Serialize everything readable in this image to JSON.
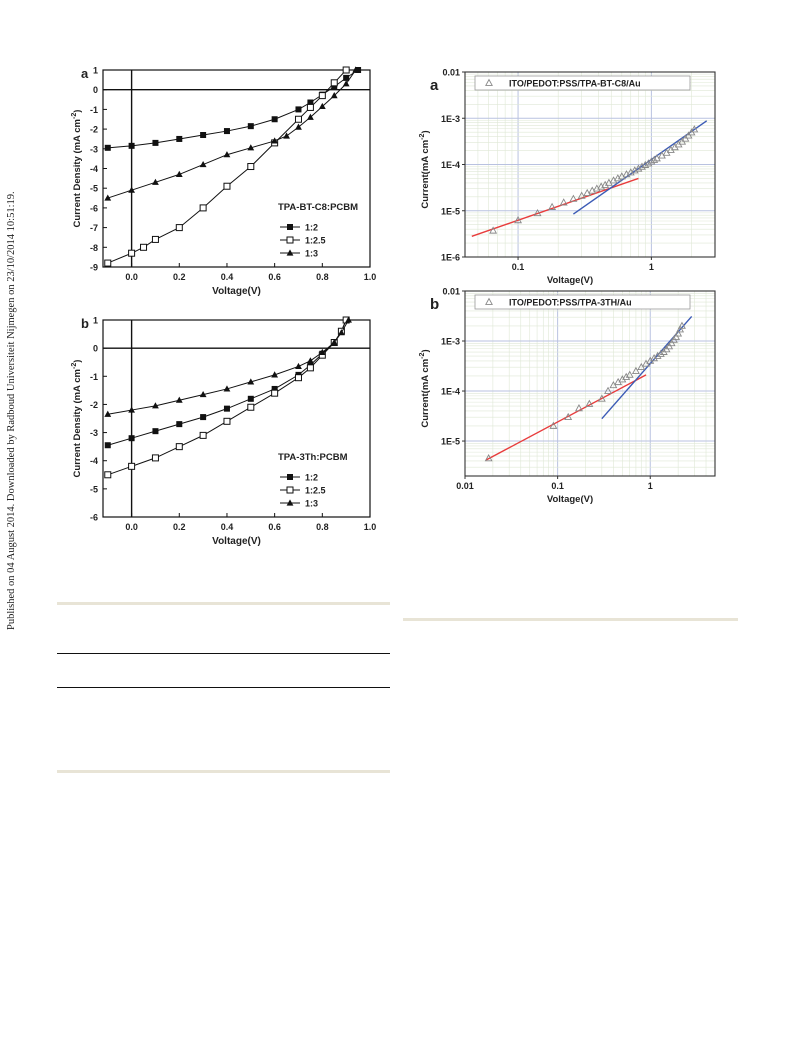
{
  "side_note": "Published on 04 August 2014. Downloaded by Radboud Universiteit Nijmegen on 23/10/2014 10:51:19.",
  "chart_data": [
    {
      "panel": "a",
      "type": "line",
      "xlabel": "Voltage(V)",
      "ylabel": "Current Density (mA cm^-2)",
      "xlim": [
        -0.12,
        1.0
      ],
      "ylim": [
        -9,
        1
      ],
      "xticks": [
        0.0,
        0.2,
        0.4,
        0.6,
        0.8,
        1.0
      ],
      "xtick_labels": [
        "0.0",
        "0.2",
        "0.4",
        "0.6",
        "0.8",
        "1.0"
      ],
      "yticks": [
        1,
        0,
        -1,
        -2,
        -3,
        -4,
        -5,
        -6,
        -7,
        -8,
        -9
      ],
      "ytick_labels": [
        "1",
        "0",
        "-1",
        "-2",
        "-3",
        "-4",
        "-5",
        "-6",
        "-7",
        "-8",
        "-9"
      ],
      "legend_title": "TPA-BT-C8:PCBM",
      "legend_position": "right",
      "series": [
        {
          "name": "1:2",
          "marker": "filled-square",
          "x": [
            -0.1,
            0.0,
            0.1,
            0.2,
            0.3,
            0.4,
            0.5,
            0.6,
            0.7,
            0.75,
            0.8,
            0.85,
            0.9,
            0.95
          ],
          "y": [
            -2.95,
            -2.85,
            -2.7,
            -2.5,
            -2.3,
            -2.1,
            -1.85,
            -1.5,
            -1.0,
            -0.65,
            -0.25,
            0.15,
            0.6,
            1.0
          ]
        },
        {
          "name": "1:2.5",
          "marker": "open-square",
          "x": [
            -0.1,
            0.0,
            0.05,
            0.1,
            0.2,
            0.3,
            0.4,
            0.5,
            0.6,
            0.7,
            0.75,
            0.8,
            0.85,
            0.9
          ],
          "y": [
            -8.8,
            -8.3,
            -8.0,
            -7.6,
            -7.0,
            -6.0,
            -4.9,
            -3.9,
            -2.7,
            -1.5,
            -0.9,
            -0.3,
            0.35,
            1.0
          ]
        },
        {
          "name": "1:3",
          "marker": "filled-triangle",
          "x": [
            -0.1,
            0.0,
            0.1,
            0.2,
            0.3,
            0.4,
            0.5,
            0.6,
            0.65,
            0.7,
            0.75,
            0.8,
            0.85,
            0.9,
            0.94
          ],
          "y": [
            -5.5,
            -5.1,
            -4.7,
            -4.3,
            -3.8,
            -3.3,
            -2.95,
            -2.6,
            -2.35,
            -1.9,
            -1.4,
            -0.85,
            -0.3,
            0.3,
            1.0
          ]
        }
      ]
    },
    {
      "panel": "b",
      "type": "line",
      "xlabel": "Voltage(V)",
      "ylabel": "Current Density (mA cm^-2)",
      "xlim": [
        -0.12,
        1.0
      ],
      "ylim": [
        -6,
        1
      ],
      "xticks": [
        0.0,
        0.2,
        0.4,
        0.6,
        0.8,
        1.0
      ],
      "xtick_labels": [
        "0.0",
        "0.2",
        "0.4",
        "0.6",
        "0.8",
        "1.0"
      ],
      "yticks": [
        1,
        0,
        -1,
        -2,
        -3,
        -4,
        -5,
        -6
      ],
      "ytick_labels": [
        "1",
        "0",
        "-1",
        "-2",
        "-3",
        "-4",
        "-5",
        "-6"
      ],
      "legend_title": "TPA-3Th:PCBM",
      "legend_position": "bottom-right",
      "series": [
        {
          "name": "1:2",
          "marker": "filled-square",
          "x": [
            -0.1,
            0.0,
            0.1,
            0.2,
            0.3,
            0.4,
            0.5,
            0.6,
            0.7,
            0.75,
            0.8,
            0.85,
            0.88,
            0.9
          ],
          "y": [
            -3.45,
            -3.2,
            -2.95,
            -2.7,
            -2.45,
            -2.15,
            -1.8,
            -1.45,
            -0.95,
            -0.6,
            -0.2,
            0.2,
            0.6,
            1.0
          ]
        },
        {
          "name": "1:2.5",
          "marker": "open-square",
          "x": [
            -0.1,
            0.0,
            0.1,
            0.2,
            0.3,
            0.4,
            0.5,
            0.6,
            0.7,
            0.75,
            0.8,
            0.85,
            0.88,
            0.9
          ],
          "y": [
            -4.5,
            -4.2,
            -3.9,
            -3.5,
            -3.1,
            -2.6,
            -2.1,
            -1.6,
            -1.05,
            -0.7,
            -0.25,
            0.2,
            0.6,
            1.0
          ]
        },
        {
          "name": "1:3",
          "marker": "filled-triangle",
          "x": [
            -0.1,
            0.0,
            0.1,
            0.2,
            0.3,
            0.4,
            0.5,
            0.6,
            0.7,
            0.75,
            0.8,
            0.85,
            0.88,
            0.91
          ],
          "y": [
            -2.35,
            -2.2,
            -2.05,
            -1.85,
            -1.65,
            -1.45,
            -1.2,
            -0.95,
            -0.65,
            -0.45,
            -0.15,
            0.2,
            0.55,
            1.0
          ]
        }
      ]
    },
    {
      "panel": "a",
      "type": "scatter",
      "xscale": "log",
      "yscale": "log",
      "xlabel": "Voltage(V)",
      "ylabel": "Current(mA cm^-2)",
      "xlim": [
        0.04,
        3
      ],
      "ylim": [
        1e-06,
        0.01
      ],
      "xticks": [
        0.1,
        1
      ],
      "xtick_labels": [
        "0.1",
        "1"
      ],
      "yticks": [
        0.01,
        0.001,
        0.0001,
        1e-05,
        1e-06
      ],
      "ytick_labels": [
        "0.01",
        "1E-3",
        "1E-4",
        "1E-5",
        "1E-6"
      ],
      "grid": true,
      "legend_position": "top",
      "series": [
        {
          "name": "ITO/PEDOT:PSS/TPA-BT-C8/Au",
          "marker": "open-triangle",
          "x": [
            0.065,
            0.1,
            0.14,
            0.18,
            0.22,
            0.26,
            0.3,
            0.33,
            0.36,
            0.39,
            0.42,
            0.45,
            0.48,
            0.52,
            0.56,
            0.6,
            0.65,
            0.7,
            0.75,
            0.8,
            0.85,
            0.9,
            0.95,
            1.0,
            1.05,
            1.1,
            1.2,
            1.3,
            1.4,
            1.5,
            1.6,
            1.7,
            1.8,
            1.9,
            2.0,
            2.1
          ],
          "y": [
            3.7e-06,
            6.2e-06,
            8.8e-06,
            1.2e-05,
            1.5e-05,
            1.8e-05,
            2.1e-05,
            2.4e-05,
            2.7e-05,
            3e-05,
            3.3e-05,
            3.6e-05,
            4e-05,
            4.5e-05,
            5e-05,
            5.5e-05,
            6.1e-05,
            6.7e-05,
            7.4e-05,
            8.1e-05,
            8.9e-05,
            9.7e-05,
            0.000105,
            0.000115,
            0.000125,
            0.000135,
            0.000155,
            0.000178,
            0.000205,
            0.000235,
            0.00027,
            0.00031,
            0.00036,
            0.00042,
            0.00049,
            0.00057
          ]
        }
      ],
      "fit_lines": [
        {
          "color": "#e83c3c",
          "x": [
            0.045,
            0.8
          ],
          "y": [
            2.8e-06,
            5e-05
          ]
        },
        {
          "color": "#3b5bb5",
          "x": [
            0.26,
            2.6
          ],
          "y": [
            8.5e-06,
            0.00088
          ]
        }
      ]
    },
    {
      "panel": "b",
      "type": "scatter",
      "xscale": "log",
      "yscale": "log",
      "xlabel": "Voltage(V)",
      "ylabel": "Current(mA cm^-2)",
      "xlim": [
        0.01,
        5
      ],
      "ylim": [
        2e-06,
        0.01
      ],
      "xticks": [
        0.01,
        0.1,
        1
      ],
      "xtick_labels": [
        "0.01",
        "0.1",
        "1"
      ],
      "yticks": [
        0.01,
        0.001,
        0.0001,
        1e-05
      ],
      "ytick_labels": [
        "0.01",
        "1E-3",
        "1E-4",
        "1E-5"
      ],
      "grid": true,
      "legend_position": "top",
      "series": [
        {
          "name": "ITO/PEDOT:PSS/TPA-3TH/Au",
          "marker": "open-triangle",
          "x": [
            0.018,
            0.09,
            0.13,
            0.17,
            0.22,
            0.3,
            0.35,
            0.4,
            0.45,
            0.5,
            0.55,
            0.6,
            0.7,
            0.8,
            0.9,
            1.0,
            1.1,
            1.2,
            1.3,
            1.4,
            1.5,
            1.6,
            1.7,
            1.8,
            1.9,
            2.0,
            2.1,
            2.2
          ],
          "y": [
            4.5e-06,
            2e-05,
            3e-05,
            4.5e-05,
            5.5e-05,
            7e-05,
            0.0001,
            0.00013,
            0.00015,
            0.00017,
            0.00019,
            0.00021,
            0.00025,
            0.0003,
            0.00035,
            0.0004,
            0.00045,
            0.0005,
            0.00055,
            0.0006,
            0.00068,
            0.00078,
            0.0009,
            0.00105,
            0.0012,
            0.0014,
            0.0017,
            0.002
          ]
        }
      ],
      "fit_lines": [
        {
          "color": "#e83c3c",
          "x": [
            0.017,
            0.9
          ],
          "y": [
            4.2e-06,
            0.00021
          ]
        },
        {
          "color": "#3b5bb5",
          "x": [
            0.3,
            2.8
          ],
          "y": [
            2.8e-05,
            0.0031
          ]
        }
      ]
    }
  ]
}
